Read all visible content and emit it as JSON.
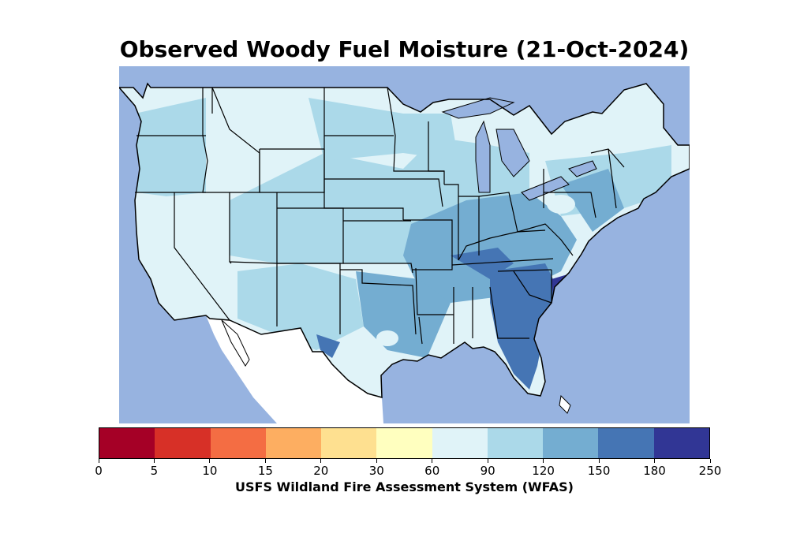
{
  "title": "Observed Woody Fuel Moisture (21-Oct-2024)",
  "colorbar": {
    "ticks": [
      "0",
      "5",
      "10",
      "15",
      "20",
      "30",
      "60",
      "90",
      "120",
      "150",
      "180",
      "250"
    ],
    "colors": [
      "#a50026",
      "#d73027",
      "#f46d43",
      "#fdae61",
      "#fee090",
      "#ffffbf",
      "#e0f3f8",
      "#abd9e9",
      "#74add1",
      "#4575b4",
      "#313695"
    ],
    "caption": "USFS Wildland Fire Assessment System (WFAS)"
  },
  "map": {
    "ocean_color": "#97b3e0",
    "land_outside_color": "#ffffff",
    "border_color": "#000000"
  }
}
